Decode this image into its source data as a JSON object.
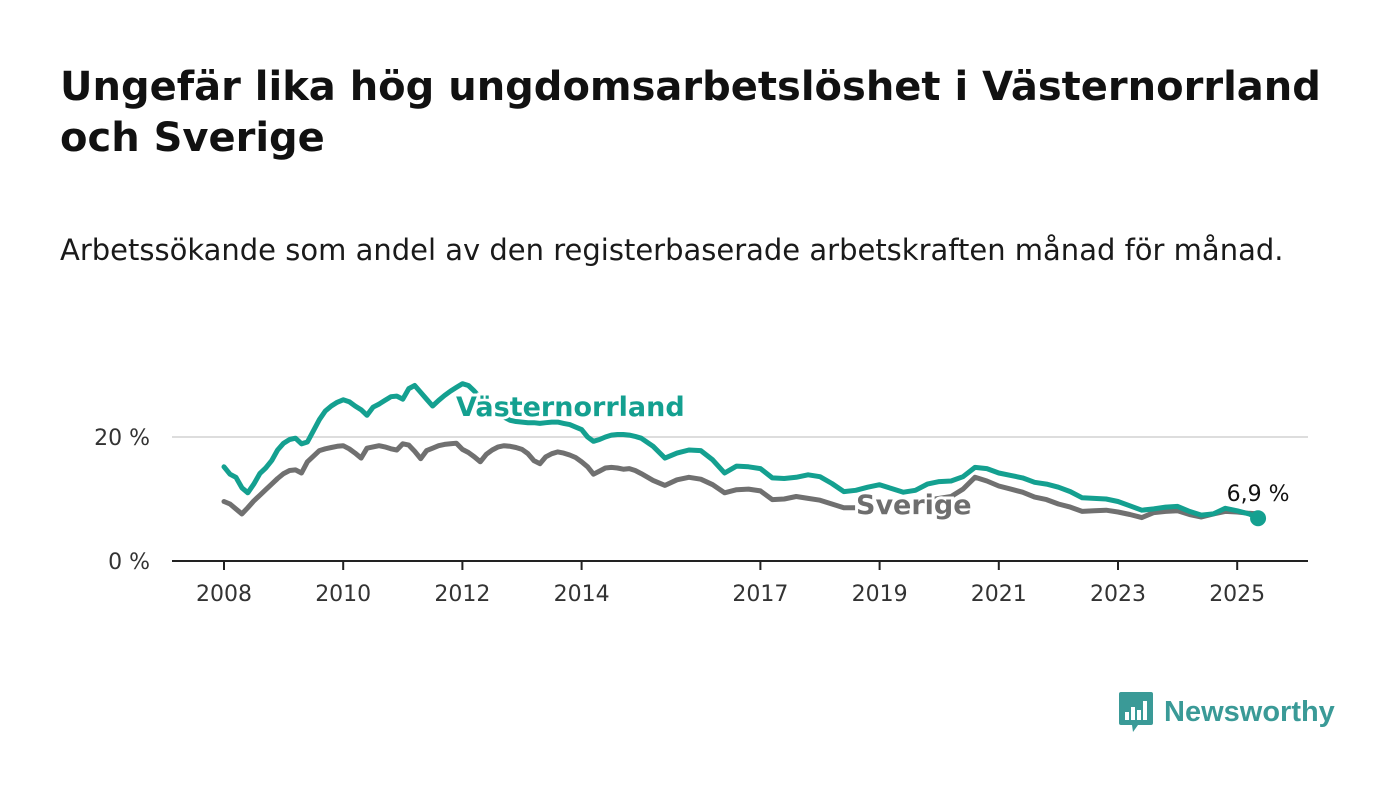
{
  "title": "Ungefär lika hög ungdomsarbetslöshet i Västernorrland och Sverige",
  "subtitle": "Arbetssökande som andel av den registerbaserade arbetskraften månad för månad.",
  "brand": {
    "name": "Newsworthy",
    "icon": "bar-chart-speech-bubble-icon",
    "color": "#3a9a97"
  },
  "chart_data": {
    "type": "line",
    "title": "Ungefär lika hög ungdomsarbetslöshet i Västernorrland och Sverige",
    "subtitle": "Arbetssökande som andel av den registerbaserade arbetskraften månad för månad.",
    "xlabel": "",
    "ylabel": "",
    "xlim": [
      2008,
      2025.5
    ],
    "ylim": [
      0,
      30
    ],
    "y_ticks": [
      0,
      20
    ],
    "y_tick_labels": [
      "0 %",
      "20 %"
    ],
    "x_ticks": [
      2008,
      2010,
      2012,
      2014,
      2017,
      2019,
      2021,
      2023,
      2025
    ],
    "x_tick_labels": [
      "2008",
      "2010",
      "2012",
      "2014",
      "2017",
      "2019",
      "2021",
      "2023",
      "2025"
    ],
    "grid": "horizontal",
    "legend": "inline labels",
    "end_label": "6,9 %",
    "series": [
      {
        "name": "Västernorrland",
        "color": "#14a090",
        "x": [
          2008.0,
          2008.1,
          2008.2,
          2008.3,
          2008.4,
          2008.5,
          2008.6,
          2008.7,
          2008.8,
          2008.9,
          2009.0,
          2009.1,
          2009.2,
          2009.3,
          2009.4,
          2009.5,
          2009.6,
          2009.7,
          2009.8,
          2009.9,
          2010.0,
          2010.1,
          2010.2,
          2010.3,
          2010.4,
          2010.5,
          2010.6,
          2010.7,
          2010.8,
          2010.9,
          2011.0,
          2011.1,
          2011.2,
          2011.3,
          2011.4,
          2011.5,
          2011.6,
          2011.7,
          2011.8,
          2011.9,
          2012.0,
          2012.1,
          2012.2,
          2012.3,
          2012.4,
          2012.5,
          2012.6,
          2012.7,
          2012.8,
          2012.9,
          2013.0,
          2013.1,
          2013.2,
          2013.3,
          2013.4,
          2013.5,
          2013.6,
          2013.7,
          2013.8,
          2013.9,
          2014.0,
          2014.1,
          2014.2,
          2014.3,
          2014.4,
          2014.5,
          2014.6,
          2014.7,
          2014.8,
          2014.9,
          2015.0,
          2015.2,
          2015.4,
          2015.6,
          2015.8,
          2016.0,
          2016.2,
          2016.4,
          2016.6,
          2016.8,
          2017.0,
          2017.2,
          2017.4,
          2017.6,
          2017.8,
          2018.0,
          2018.2,
          2018.4,
          2018.6,
          2018.8,
          2019.0,
          2019.2,
          2019.4,
          2019.6,
          2019.8,
          2020.0,
          2020.2,
          2020.4,
          2020.6,
          2020.8,
          2021.0,
          2021.2,
          2021.4,
          2021.6,
          2021.8,
          2022.0,
          2022.2,
          2022.4,
          2022.6,
          2022.8,
          2023.0,
          2023.2,
          2023.4,
          2023.6,
          2023.8,
          2024.0,
          2024.2,
          2024.4,
          2024.6,
          2024.8,
          2025.0,
          2025.2,
          2025.35
        ],
        "values": [
          15.2,
          14.0,
          13.5,
          11.8,
          11.0,
          12.4,
          14.1,
          15.0,
          16.2,
          17.9,
          19.0,
          19.6,
          19.8,
          18.9,
          19.2,
          21.0,
          22.8,
          24.2,
          25.0,
          25.6,
          26.0,
          25.7,
          25.0,
          24.4,
          23.5,
          24.8,
          25.3,
          25.9,
          26.5,
          26.6,
          26.1,
          27.8,
          28.3,
          27.2,
          26.1,
          25.0,
          25.9,
          26.7,
          27.4,
          28.0,
          28.6,
          28.3,
          27.4,
          26.3,
          25.4,
          24.6,
          23.9,
          23.2,
          22.7,
          22.5,
          22.4,
          22.3,
          22.3,
          22.2,
          22.3,
          22.4,
          22.4,
          22.2,
          22.0,
          21.6,
          21.2,
          20.0,
          19.3,
          19.6,
          20.0,
          20.3,
          20.4,
          20.4,
          20.3,
          20.1,
          19.8,
          18.5,
          16.6,
          17.4,
          17.9,
          17.8,
          16.3,
          14.2,
          15.3,
          15.2,
          14.9,
          13.4,
          13.3,
          13.5,
          13.9,
          13.6,
          12.5,
          11.2,
          11.4,
          11.9,
          12.3,
          11.7,
          11.1,
          11.4,
          12.4,
          12.8,
          12.9,
          13.6,
          15.1,
          14.9,
          14.2,
          13.8,
          13.4,
          12.7,
          12.4,
          11.9,
          11.2,
          10.2,
          10.1,
          10.0,
          9.6,
          8.9,
          8.2,
          8.4,
          8.7,
          8.8,
          8.0,
          7.4,
          7.6,
          8.5,
          8.1,
          7.6,
          6.9
        ]
      },
      {
        "name": "Sverige",
        "color": "#707070",
        "x": [
          2008.0,
          2008.1,
          2008.2,
          2008.3,
          2008.4,
          2008.5,
          2008.6,
          2008.7,
          2008.8,
          2008.9,
          2009.0,
          2009.1,
          2009.2,
          2009.3,
          2009.4,
          2009.5,
          2009.6,
          2009.7,
          2009.8,
          2009.9,
          2010.0,
          2010.1,
          2010.2,
          2010.3,
          2010.4,
          2010.5,
          2010.6,
          2010.7,
          2010.8,
          2010.9,
          2011.0,
          2011.1,
          2011.2,
          2011.3,
          2011.4,
          2011.5,
          2011.6,
          2011.7,
          2011.8,
          2011.9,
          2012.0,
          2012.1,
          2012.2,
          2012.3,
          2012.4,
          2012.5,
          2012.6,
          2012.7,
          2012.8,
          2012.9,
          2013.0,
          2013.1,
          2013.2,
          2013.3,
          2013.4,
          2013.5,
          2013.6,
          2013.7,
          2013.8,
          2013.9,
          2014.0,
          2014.1,
          2014.2,
          2014.3,
          2014.4,
          2014.5,
          2014.6,
          2014.7,
          2014.8,
          2014.9,
          2015.0,
          2015.2,
          2015.4,
          2015.6,
          2015.8,
          2016.0,
          2016.2,
          2016.4,
          2016.6,
          2016.8,
          2017.0,
          2017.2,
          2017.4,
          2017.6,
          2017.8,
          2018.0,
          2018.2,
          2018.4,
          2018.6,
          2018.8,
          2019.0,
          2019.2,
          2019.4,
          2019.6,
          2019.8,
          2020.0,
          2020.2,
          2020.4,
          2020.6,
          2020.8,
          2021.0,
          2021.2,
          2021.4,
          2021.6,
          2021.8,
          2022.0,
          2022.2,
          2022.4,
          2022.6,
          2022.8,
          2023.0,
          2023.2,
          2023.4,
          2023.6,
          2023.8,
          2024.0,
          2024.2,
          2024.4,
          2024.6,
          2024.8,
          2025.0,
          2025.2,
          2025.35
        ],
        "values": [
          9.6,
          9.2,
          8.4,
          7.6,
          8.6,
          9.7,
          10.6,
          11.5,
          12.4,
          13.3,
          14.1,
          14.6,
          14.7,
          14.2,
          16.0,
          16.9,
          17.8,
          18.1,
          18.3,
          18.5,
          18.6,
          18.1,
          17.4,
          16.6,
          18.2,
          18.4,
          18.6,
          18.4,
          18.1,
          17.9,
          18.9,
          18.7,
          17.7,
          16.5,
          17.8,
          18.2,
          18.6,
          18.8,
          18.9,
          19.0,
          18.0,
          17.5,
          16.8,
          16.0,
          17.2,
          17.9,
          18.4,
          18.6,
          18.5,
          18.3,
          18.0,
          17.3,
          16.2,
          15.7,
          16.8,
          17.3,
          17.6,
          17.4,
          17.1,
          16.7,
          16.0,
          15.2,
          14.0,
          14.5,
          15.0,
          15.1,
          15.0,
          14.8,
          14.9,
          14.6,
          14.1,
          13.0,
          12.2,
          13.1,
          13.5,
          13.2,
          12.3,
          11.0,
          11.5,
          11.6,
          11.3,
          9.9,
          10.0,
          10.4,
          10.1,
          9.8,
          9.2,
          8.6,
          8.6,
          8.9,
          9.3,
          9.0,
          8.7,
          9.1,
          9.8,
          10.1,
          10.4,
          11.6,
          13.5,
          12.9,
          12.1,
          11.6,
          11.1,
          10.3,
          9.9,
          9.2,
          8.7,
          8.0,
          8.1,
          8.2,
          7.9,
          7.5,
          7.0,
          7.8,
          8.0,
          8.1,
          7.5,
          7.1,
          7.6,
          8.0,
          7.9,
          7.7,
          7.6
        ]
      }
    ]
  }
}
